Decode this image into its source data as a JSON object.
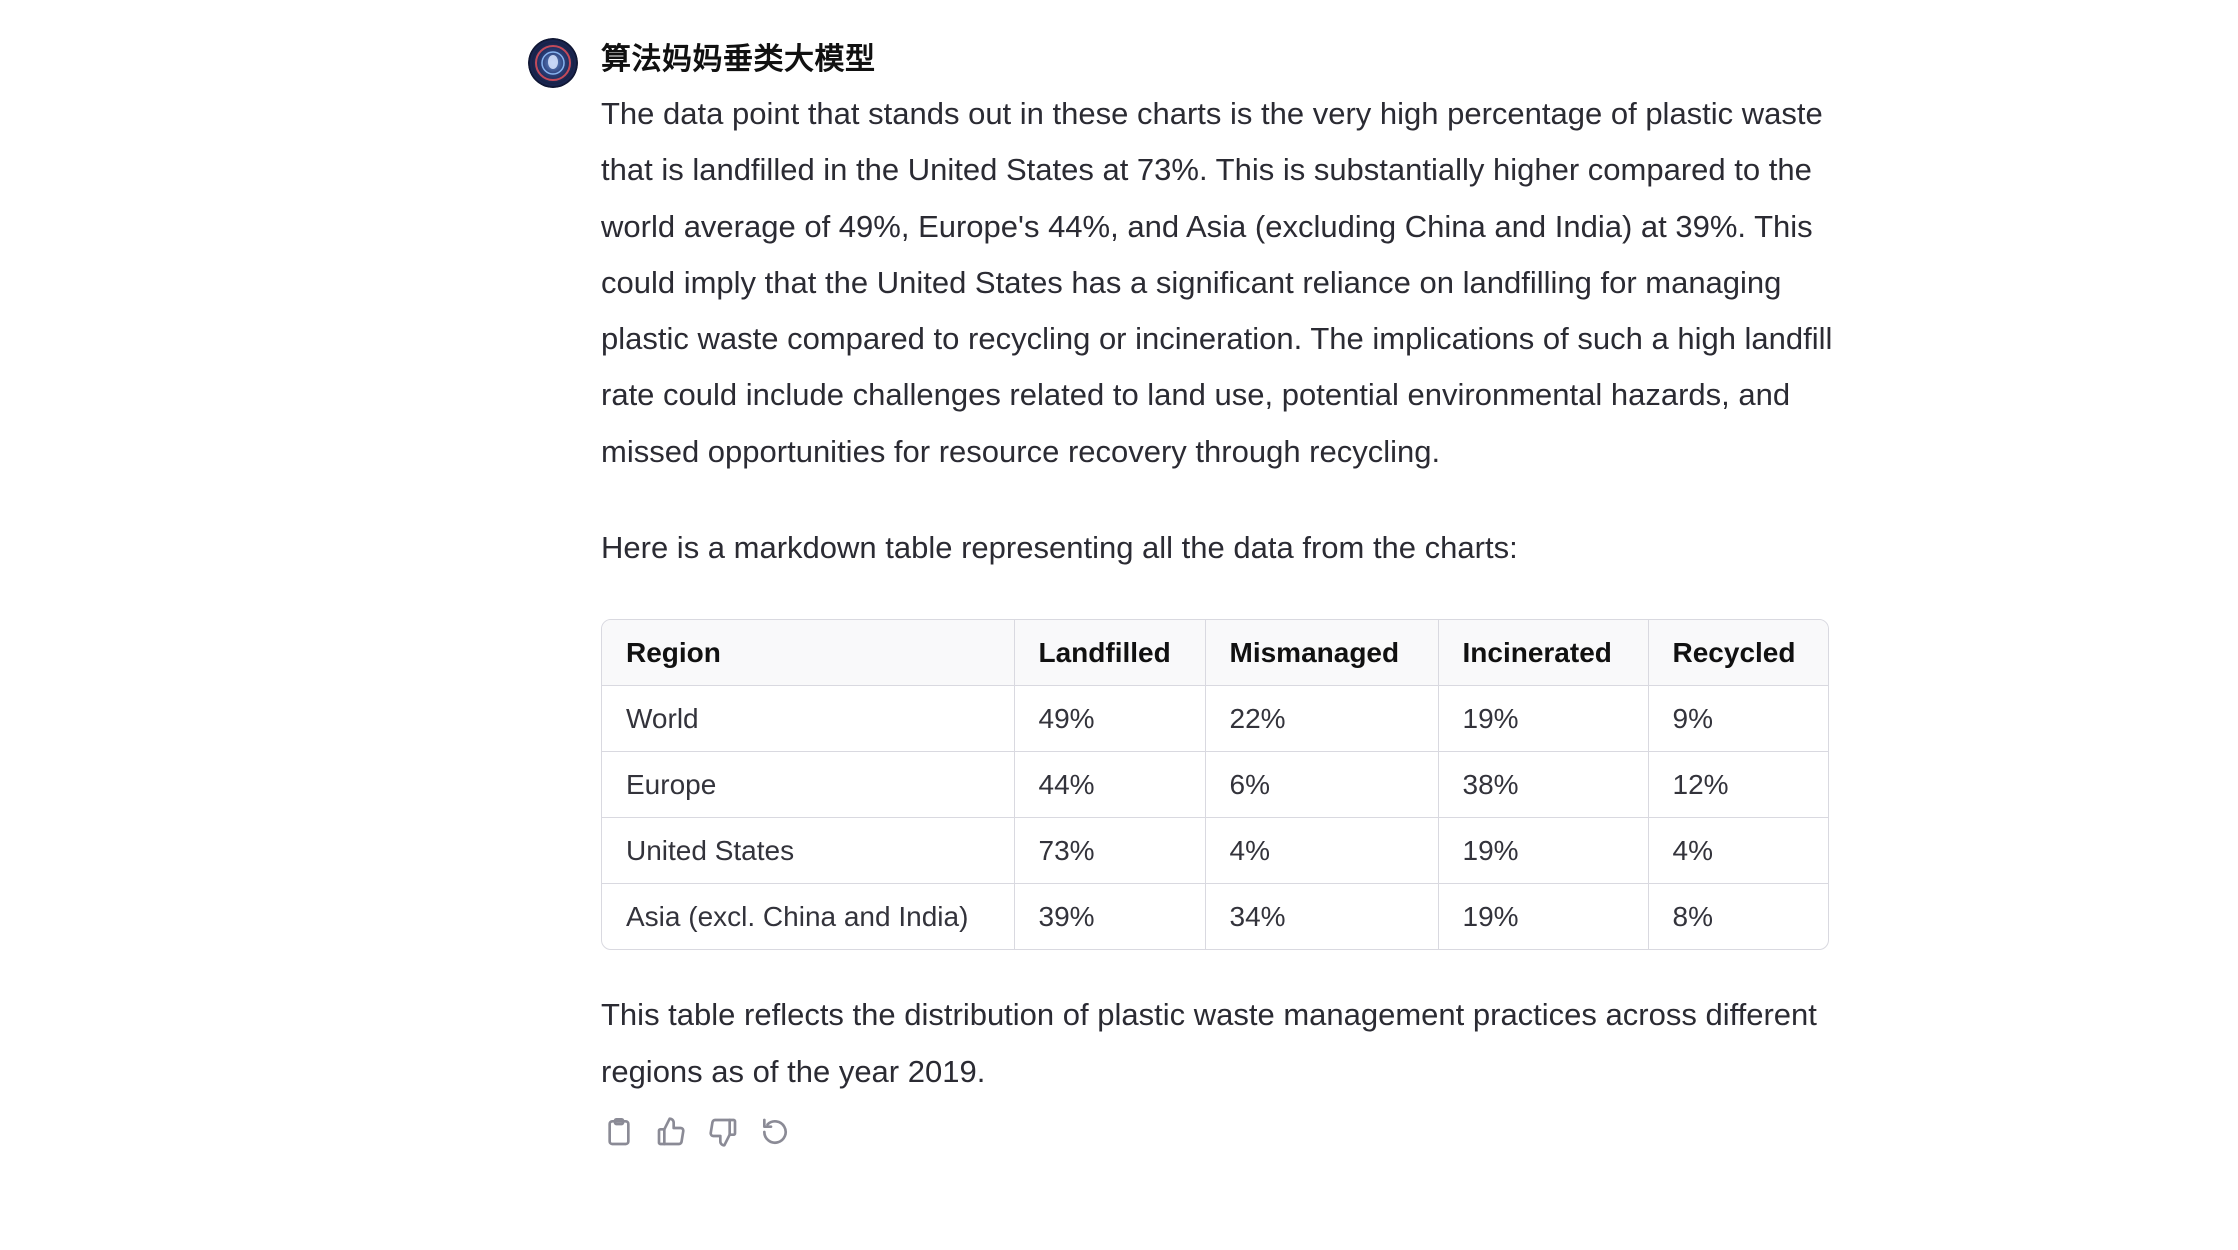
{
  "message": {
    "sender_name": "算法妈妈垂类大模型",
    "avatar_icon": "avatar-icon",
    "paragraphs": {
      "intro": "The data point that stands out in these charts is the very high percentage of plastic waste that is landfilled in the United States at 73%. This is substantially higher compared to the world average of 49%, Europe's 44%, and Asia (excluding China and India) at 39%. This could imply that the United States has a significant reliance on landfilling for managing plastic waste compared to recycling or incineration. The implications of such a high landfill rate could include challenges related to land use, potential environmental hazards, and missed opportunities for resource recovery through recycling.",
      "table_intro": "Here is a markdown table representing all the data from the charts:",
      "conclusion": "This table reflects the distribution of plastic waste management practices across different regions as of the year 2019."
    },
    "table": {
      "headers": [
        "Region",
        "Landfilled",
        "Mismanaged",
        "Incinerated",
        "Recycled"
      ],
      "rows": [
        [
          "World",
          "49%",
          "22%",
          "19%",
          "9%"
        ],
        [
          "Europe",
          "44%",
          "6%",
          "38%",
          "12%"
        ],
        [
          "United States",
          "73%",
          "4%",
          "19%",
          "4%"
        ],
        [
          "Asia (excl. China and India)",
          "39%",
          "34%",
          "19%",
          "8%"
        ]
      ]
    },
    "actions": [
      {
        "name": "copy-button",
        "icon": "clipboard-icon"
      },
      {
        "name": "thumbs-up-button",
        "icon": "thumbs-up-icon"
      },
      {
        "name": "thumbs-down-button",
        "icon": "thumbs-down-icon"
      },
      {
        "name": "regenerate-button",
        "icon": "regenerate-icon"
      }
    ]
  }
}
